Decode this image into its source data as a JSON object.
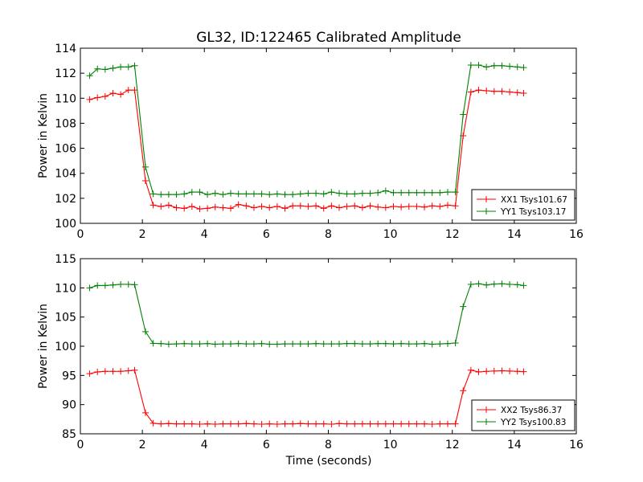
{
  "chart_data": [
    {
      "type": "line",
      "title": "GL32, ID:122465 Calibrated Amplitude",
      "xlabel": "",
      "ylabel": "Power in Kelvin",
      "xlim": [
        0,
        16
      ],
      "ylim": [
        100,
        114
      ],
      "xticks": [
        0,
        2,
        4,
        6,
        8,
        10,
        12,
        14,
        16
      ],
      "xtick_labels": [
        "0",
        "2",
        "4",
        "6",
        "8",
        "10",
        "12",
        "14",
        "16"
      ],
      "yticks": [
        100,
        102,
        104,
        106,
        108,
        110,
        112,
        114
      ],
      "ytick_labels": [
        "100",
        "102",
        "104",
        "106",
        "108",
        "110",
        "112",
        "114"
      ],
      "legend_position": "lower-right",
      "x": [
        0.3,
        0.55,
        0.8,
        1.05,
        1.3,
        1.55,
        1.75,
        2.1,
        2.35,
        2.6,
        2.85,
        3.1,
        3.35,
        3.6,
        3.85,
        4.1,
        4.35,
        4.6,
        4.85,
        5.1,
        5.35,
        5.6,
        5.85,
        6.1,
        6.35,
        6.6,
        6.85,
        7.1,
        7.35,
        7.6,
        7.85,
        8.1,
        8.35,
        8.6,
        8.85,
        9.1,
        9.35,
        9.6,
        9.85,
        10.1,
        10.35,
        10.6,
        10.85,
        11.1,
        11.35,
        11.6,
        11.85,
        12.1,
        12.35,
        12.6,
        12.85,
        13.1,
        13.35,
        13.6,
        13.85,
        14.1,
        14.3
      ],
      "series": [
        {
          "name": "XX1 Tsys101.67",
          "color": "#ff0000",
          "values": [
            109.9,
            110.05,
            110.15,
            110.4,
            110.3,
            110.65,
            110.65,
            103.4,
            101.45,
            101.35,
            101.45,
            101.25,
            101.2,
            101.35,
            101.15,
            101.2,
            101.3,
            101.25,
            101.2,
            101.5,
            101.4,
            101.25,
            101.35,
            101.25,
            101.35,
            101.2,
            101.4,
            101.4,
            101.35,
            101.4,
            101.2,
            101.4,
            101.25,
            101.35,
            101.4,
            101.25,
            101.4,
            101.3,
            101.25,
            101.35,
            101.3,
            101.35,
            101.35,
            101.3,
            101.4,
            101.35,
            101.45,
            101.4,
            107.0,
            110.5,
            110.65,
            110.6,
            110.55,
            110.55,
            110.5,
            110.45,
            110.4
          ],
          "label": "XX1 Tsys101.67"
        },
        {
          "name": "YY1 Tsys103.17",
          "color": "#008000",
          "values": [
            111.8,
            112.35,
            112.3,
            112.4,
            112.5,
            112.5,
            112.6,
            104.5,
            102.35,
            102.3,
            102.3,
            102.3,
            102.35,
            102.5,
            102.5,
            102.3,
            102.4,
            102.3,
            102.4,
            102.35,
            102.35,
            102.35,
            102.35,
            102.3,
            102.35,
            102.3,
            102.3,
            102.35,
            102.4,
            102.4,
            102.35,
            102.5,
            102.4,
            102.35,
            102.35,
            102.4,
            102.4,
            102.45,
            102.6,
            102.45,
            102.45,
            102.45,
            102.45,
            102.45,
            102.45,
            102.45,
            102.5,
            102.5,
            108.7,
            112.65,
            112.65,
            112.5,
            112.6,
            112.6,
            112.55,
            112.5,
            112.45
          ],
          "label": "YY1 Tsys103.17"
        }
      ]
    },
    {
      "type": "line",
      "title": "",
      "xlabel": "Time (seconds)",
      "ylabel": "Power in Kelvin",
      "xlim": [
        0,
        16
      ],
      "ylim": [
        85,
        115
      ],
      "xticks": [
        0,
        2,
        4,
        6,
        8,
        10,
        12,
        14,
        16
      ],
      "xtick_labels": [
        "0",
        "2",
        "4",
        "6",
        "8",
        "10",
        "12",
        "14",
        "16"
      ],
      "yticks": [
        85,
        90,
        95,
        100,
        105,
        110,
        115
      ],
      "ytick_labels": [
        "85",
        "90",
        "95",
        "100",
        "105",
        "110",
        "115"
      ],
      "legend_position": "lower-right",
      "x": [
        0.3,
        0.55,
        0.8,
        1.05,
        1.3,
        1.55,
        1.75,
        2.1,
        2.35,
        2.6,
        2.85,
        3.1,
        3.35,
        3.6,
        3.85,
        4.1,
        4.35,
        4.6,
        4.85,
        5.1,
        5.35,
        5.6,
        5.85,
        6.1,
        6.35,
        6.6,
        6.85,
        7.1,
        7.35,
        7.6,
        7.85,
        8.1,
        8.35,
        8.6,
        8.85,
        9.1,
        9.35,
        9.6,
        9.85,
        10.1,
        10.35,
        10.6,
        10.85,
        11.1,
        11.35,
        11.6,
        11.85,
        12.1,
        12.35,
        12.6,
        12.85,
        13.1,
        13.35,
        13.6,
        13.85,
        14.1,
        14.3
      ],
      "series": [
        {
          "name": "XX2 Tsys86.37",
          "color": "#ff0000",
          "values": [
            95.3,
            95.6,
            95.7,
            95.7,
            95.7,
            95.8,
            95.9,
            88.6,
            86.8,
            86.7,
            86.75,
            86.7,
            86.7,
            86.7,
            86.65,
            86.7,
            86.65,
            86.7,
            86.7,
            86.7,
            86.75,
            86.7,
            86.65,
            86.7,
            86.65,
            86.7,
            86.7,
            86.75,
            86.7,
            86.7,
            86.7,
            86.65,
            86.75,
            86.7,
            86.7,
            86.7,
            86.7,
            86.7,
            86.7,
            86.7,
            86.7,
            86.7,
            86.7,
            86.7,
            86.65,
            86.7,
            86.7,
            86.7,
            92.4,
            95.9,
            95.6,
            95.7,
            95.75,
            95.8,
            95.75,
            95.7,
            95.65
          ],
          "label": "XX2 Tsys86.37"
        },
        {
          "name": "YY2 Tsys100.83",
          "color": "#008000",
          "values": [
            110.0,
            110.4,
            110.4,
            110.5,
            110.6,
            110.6,
            110.55,
            102.5,
            100.5,
            100.45,
            100.35,
            100.4,
            100.45,
            100.4,
            100.4,
            100.45,
            100.35,
            100.4,
            100.4,
            100.45,
            100.4,
            100.4,
            100.45,
            100.35,
            100.35,
            100.4,
            100.4,
            100.4,
            100.4,
            100.45,
            100.4,
            100.4,
            100.4,
            100.45,
            100.45,
            100.4,
            100.4,
            100.45,
            100.45,
            100.4,
            100.45,
            100.4,
            100.4,
            100.45,
            100.35,
            100.4,
            100.45,
            100.55,
            106.8,
            110.6,
            110.7,
            110.5,
            110.65,
            110.7,
            110.6,
            110.55,
            110.4
          ],
          "label": "YY2 Tsys100.83"
        }
      ]
    }
  ]
}
